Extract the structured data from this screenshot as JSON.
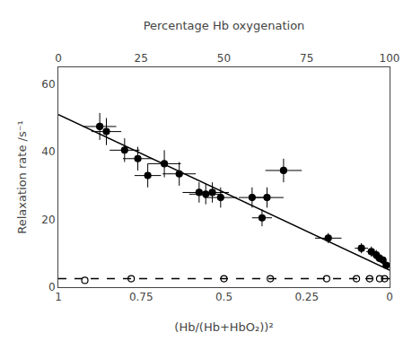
{
  "chart_data": {
    "type": "scatter",
    "xlabel": "(Hb/(Hb+HbO₂))²",
    "ylabel": "Relaxation rate /s⁻¹",
    "x2label": "Percentage Hb oxygenation",
    "xlim": [
      1.0,
      0.0
    ],
    "ylim": [
      0,
      65
    ],
    "xticks": [
      1,
      0.75,
      0.5,
      0.25,
      0
    ],
    "yticks": [
      0,
      20,
      40,
      60
    ],
    "x2lim": [
      0,
      100
    ],
    "x2ticks": [
      0,
      25,
      50,
      75,
      100
    ],
    "grid": false,
    "series": [
      {
        "type": "line",
        "color": "#000000",
        "line_style": "solid",
        "x": [
          0.0,
          1.0
        ],
        "values": [
          5.0,
          51.0
        ]
      },
      {
        "type": "scatter",
        "color": "#000000",
        "marker": "circle",
        "x": [
          0.875,
          0.855,
          0.8,
          0.76,
          0.73,
          0.68,
          0.635,
          0.575,
          0.555,
          0.535,
          0.51,
          0.415,
          0.385,
          0.37,
          0.32,
          0.185,
          0.085,
          0.055,
          0.04,
          0.03,
          0.02,
          0.01
        ],
        "values": [
          47.5,
          46.0,
          40.5,
          38.0,
          33.0,
          36.5,
          33.5,
          28.0,
          27.5,
          28.0,
          26.5,
          26.5,
          20.5,
          26.5,
          34.5,
          14.5,
          11.5,
          10.5,
          9.5,
          8.5,
          8.0,
          6.5
        ],
        "xerr": [
          0.05,
          0.045,
          0.045,
          0.045,
          0.04,
          0.05,
          0.05,
          0.05,
          0.05,
          0.05,
          0.05,
          0.04,
          0.03,
          0.05,
          0.055,
          0.04,
          0.02,
          0.015,
          0.015,
          0.015,
          0.01,
          0.01
        ],
        "yerr": [
          4.0,
          4.0,
          3.5,
          3.5,
          3.5,
          4.0,
          3.5,
          3.0,
          3.0,
          3.0,
          3.0,
          3.0,
          2.5,
          3.0,
          3.5,
          1.5,
          1.5,
          1.5,
          1.5,
          1.0,
          1.0,
          1.0
        ]
      },
      {
        "type": "scatter",
        "color": "#000000",
        "marker": "circle-open",
        "x": [
          0.92,
          0.78,
          0.5,
          0.36,
          0.19,
          0.1,
          0.06,
          0.03,
          0.015
        ],
        "values": [
          2.0,
          2.5,
          2.5,
          2.5,
          2.5,
          2.5,
          2.5,
          2.5,
          2.5
        ]
      },
      {
        "type": "line",
        "color": "#000000",
        "line_style": "dashed",
        "x": [
          1.0,
          0.0
        ],
        "values": [
          2.5,
          2.5
        ]
      }
    ]
  }
}
